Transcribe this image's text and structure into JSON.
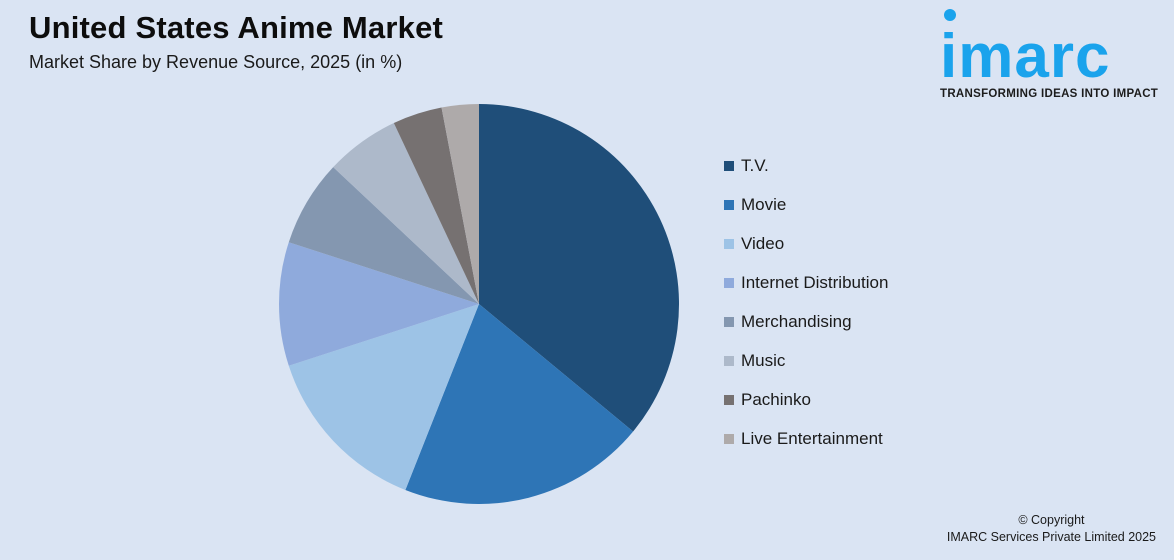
{
  "header": {
    "title": "United States Anime Market",
    "subtitle": "Market Share by  Revenue Source, 2025 (in %)"
  },
  "logo": {
    "wordmark": "imarc",
    "tagline": "TRANSFORMING IDEAS INTO IMPACT",
    "color": "#1aa3ec"
  },
  "footer": {
    "line1": "© Copyright",
    "line2": "IMARC Services Private Limited 2025"
  },
  "legend": [
    {
      "label": "T.V.",
      "color": "#1f4e79"
    },
    {
      "label": "Movie",
      "color": "#2e75b6"
    },
    {
      "label": "Video",
      "color": "#9dc3e6"
    },
    {
      "label": "Internet Distribution",
      "color": "#8faadc"
    },
    {
      "label": "Merchandising",
      "color": "#8497b0"
    },
    {
      "label": "Music",
      "color": "#adb9ca"
    },
    {
      "label": "Pachinko",
      "color": "#767171"
    },
    {
      "label": "Live Entertainment",
      "color": "#aeaaaa"
    }
  ],
  "chart_data": {
    "type": "pie",
    "title": "United States Anime Market",
    "subtitle": "Market Share by  Revenue Source, 2025 (in %)",
    "categories": [
      "T.V.",
      "Movie",
      "Video",
      "Internet Distribution",
      "Merchandising",
      "Music",
      "Pachinko",
      "Live Entertainment"
    ],
    "values": [
      36,
      20,
      14,
      10,
      7,
      6,
      4,
      3
    ],
    "colors": [
      "#1f4e79",
      "#2e75b6",
      "#9dc3e6",
      "#8faadc",
      "#8497b0",
      "#adb9ca",
      "#767171",
      "#aeaaaa"
    ],
    "start_angle": "12 o'clock, clockwise",
    "legend_position": "right",
    "data_labels": false
  }
}
